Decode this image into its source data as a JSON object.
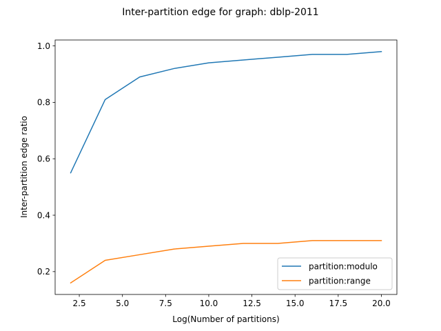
{
  "chart_data": {
    "type": "line",
    "title": "Inter-partition edge for graph: dblp-2011",
    "xlabel": "Log(Number of partitions)",
    "ylabel": "Inter-partition edge ratio",
    "xlim": [
      1.1,
      20.9
    ],
    "ylim": [
      0.119,
      1.021
    ],
    "xticks": [
      2.5,
      5.0,
      7.5,
      10.0,
      12.5,
      15.0,
      17.5,
      20.0
    ],
    "xtick_labels": [
      "2.5",
      "5.0",
      "7.5",
      "10.0",
      "12.5",
      "15.0",
      "17.5",
      "20.0"
    ],
    "yticks": [
      0.2,
      0.4,
      0.6,
      0.8,
      1.0
    ],
    "ytick_labels": [
      "0.2",
      "0.4",
      "0.6",
      "0.8",
      "1.0"
    ],
    "x": [
      2,
      4,
      6,
      8,
      10,
      12,
      14,
      16,
      18,
      20
    ],
    "series": [
      {
        "name": "partition:modulo",
        "color": "#1f77b4",
        "values": [
          0.55,
          0.81,
          0.89,
          0.92,
          0.94,
          0.95,
          0.96,
          0.97,
          0.97,
          0.98
        ]
      },
      {
        "name": "partition:range",
        "color": "#ff7f0e",
        "values": [
          0.16,
          0.24,
          0.26,
          0.28,
          0.29,
          0.3,
          0.3,
          0.31,
          0.31,
          0.31
        ]
      }
    ],
    "legend_position": "lower-right",
    "grid": false
  }
}
